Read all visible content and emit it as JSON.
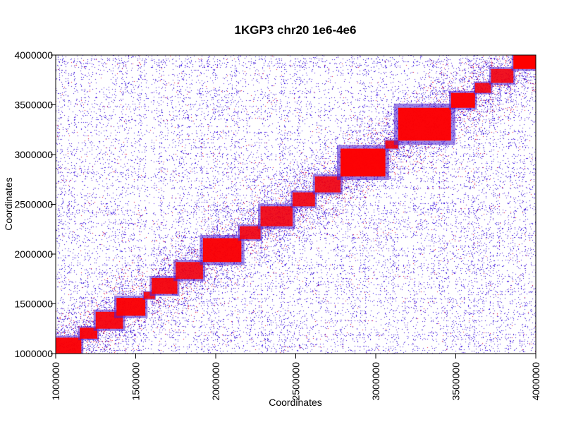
{
  "chart_data": {
    "type": "heatmap",
    "title": "1KGP3 chr20 1e6-4e6",
    "xlabel": "Coordinates",
    "ylabel": "Coordinates",
    "xlim": [
      1000000,
      4000000
    ],
    "ylim": [
      1000000,
      4000000
    ],
    "x_ticks": [
      1000000,
      1500000,
      2000000,
      2500000,
      3000000,
      3500000,
      4000000
    ],
    "y_ticks": [
      1000000,
      1500000,
      2000000,
      2500000,
      3000000,
      3500000,
      4000000
    ],
    "x_tick_labels": [
      "1000000",
      "1500000",
      "2000000",
      "2500000",
      "3000000",
      "3500000",
      "4000000"
    ],
    "y_tick_labels": [
      "1000000",
      "1500000",
      "2000000",
      "2500000",
      "3000000",
      "3500000",
      "4000000"
    ],
    "color_scale": {
      "low": "#ffffff",
      "mid": "#3b1fd6",
      "high": "#ff0000"
    },
    "grid": false,
    "legend": "none",
    "blocks": [
      {
        "start": 1000000,
        "end": 1160000,
        "intensity": 0.95
      },
      {
        "start": 1150000,
        "end": 1260000,
        "intensity": 0.92
      },
      {
        "start": 1250000,
        "end": 1420000,
        "intensity": 0.9
      },
      {
        "start": 1380000,
        "end": 1560000,
        "intensity": 0.95
      },
      {
        "start": 1550000,
        "end": 1620000,
        "intensity": 0.85
      },
      {
        "start": 1600000,
        "end": 1760000,
        "intensity": 0.9
      },
      {
        "start": 1750000,
        "end": 1920000,
        "intensity": 0.85
      },
      {
        "start": 1920000,
        "end": 2160000,
        "intensity": 0.95
      },
      {
        "start": 2150000,
        "end": 2280000,
        "intensity": 0.85
      },
      {
        "start": 2280000,
        "end": 2480000,
        "intensity": 0.85
      },
      {
        "start": 2480000,
        "end": 2620000,
        "intensity": 0.85
      },
      {
        "start": 2620000,
        "end": 2780000,
        "intensity": 0.85
      },
      {
        "start": 2780000,
        "end": 3060000,
        "intensity": 0.98
      },
      {
        "start": 3060000,
        "end": 3140000,
        "intensity": 0.85
      },
      {
        "start": 3140000,
        "end": 3470000,
        "intensity": 0.97
      },
      {
        "start": 3470000,
        "end": 3620000,
        "intensity": 0.97
      },
      {
        "start": 3620000,
        "end": 3720000,
        "intensity": 0.85
      },
      {
        "start": 3720000,
        "end": 3860000,
        "intensity": 0.85
      },
      {
        "start": 3860000,
        "end": 4000000,
        "intensity": 1.0
      }
    ]
  }
}
